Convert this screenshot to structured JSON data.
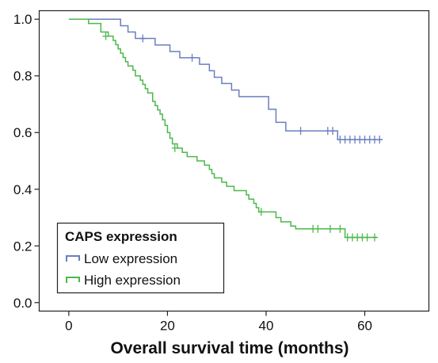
{
  "chart_data": {
    "type": "line",
    "subtype": "kaplan-meier",
    "xlabel": "Overall survival time (months)",
    "ylabel": "",
    "xlim": [
      -6,
      73
    ],
    "ylim": [
      -0.03,
      1.03
    ],
    "xticks": [
      0,
      20,
      40,
      60
    ],
    "yticks": [
      0.0,
      0.2,
      0.4,
      0.6,
      0.8,
      1.0
    ],
    "xtick_labels": [
      "0",
      "20",
      "40",
      "60"
    ],
    "ytick_labels": [
      "0.0",
      "0.2",
      "0.4",
      "0.6",
      "0.8",
      "1.0"
    ],
    "grid": false,
    "legend": {
      "title": "CAPS expression",
      "placement": "bottom-left"
    },
    "series": [
      {
        "name": "Low expression",
        "color": "#6a7fc0",
        "steps": [
          [
            0,
            1.0
          ],
          [
            10.5,
            0.977
          ],
          [
            12,
            0.955
          ],
          [
            13.5,
            0.932
          ],
          [
            17.5,
            0.909
          ],
          [
            20.5,
            0.886
          ],
          [
            22.5,
            0.864
          ],
          [
            26.5,
            0.841
          ],
          [
            28.5,
            0.818
          ],
          [
            29.5,
            0.795
          ],
          [
            31,
            0.773
          ],
          [
            33,
            0.75
          ],
          [
            34.5,
            0.727
          ],
          [
            40.5,
            0.682
          ],
          [
            42,
            0.636
          ],
          [
            44,
            0.606
          ],
          [
            54.5,
            0.575
          ]
        ],
        "end": 63.5,
        "censored": [
          [
            15,
            0.932
          ],
          [
            25,
            0.864
          ],
          [
            47,
            0.606
          ],
          [
            52.5,
            0.606
          ],
          [
            53.5,
            0.606
          ],
          [
            55,
            0.575
          ],
          [
            56,
            0.575
          ],
          [
            57,
            0.575
          ],
          [
            58,
            0.575
          ],
          [
            59,
            0.575
          ],
          [
            60,
            0.575
          ],
          [
            61,
            0.575
          ],
          [
            62,
            0.575
          ],
          [
            63,
            0.575
          ]
        ]
      },
      {
        "name": "High expression",
        "color": "#4cb84c",
        "steps": [
          [
            0,
            1.0
          ],
          [
            4,
            0.985
          ],
          [
            6.5,
            0.955
          ],
          [
            8,
            0.94
          ],
          [
            9,
            0.925
          ],
          [
            9.5,
            0.91
          ],
          [
            10,
            0.895
          ],
          [
            10.5,
            0.88
          ],
          [
            11,
            0.865
          ],
          [
            11.5,
            0.85
          ],
          [
            12,
            0.835
          ],
          [
            13,
            0.82
          ],
          [
            13.5,
            0.8
          ],
          [
            14.5,
            0.785
          ],
          [
            15,
            0.77
          ],
          [
            15.5,
            0.755
          ],
          [
            16,
            0.74
          ],
          [
            17,
            0.71
          ],
          [
            17.5,
            0.695
          ],
          [
            18,
            0.68
          ],
          [
            18.5,
            0.665
          ],
          [
            19,
            0.645
          ],
          [
            19.5,
            0.625
          ],
          [
            20,
            0.6
          ],
          [
            20.5,
            0.58
          ],
          [
            21,
            0.56
          ],
          [
            22,
            0.545
          ],
          [
            23,
            0.53
          ],
          [
            24,
            0.515
          ],
          [
            26,
            0.5
          ],
          [
            27.5,
            0.485
          ],
          [
            28.5,
            0.47
          ],
          [
            29,
            0.455
          ],
          [
            29.5,
            0.44
          ],
          [
            31,
            0.425
          ],
          [
            32,
            0.41
          ],
          [
            33.5,
            0.395
          ],
          [
            36,
            0.38
          ],
          [
            36.5,
            0.365
          ],
          [
            37.5,
            0.35
          ],
          [
            38,
            0.335
          ],
          [
            38.5,
            0.32
          ],
          [
            42,
            0.3
          ],
          [
            43,
            0.285
          ],
          [
            45,
            0.27
          ],
          [
            46,
            0.26
          ],
          [
            56,
            0.23
          ]
        ],
        "end": 62.5,
        "censored": [
          [
            7.5,
            0.94
          ],
          [
            21.5,
            0.545
          ],
          [
            39,
            0.32
          ],
          [
            49.5,
            0.26
          ],
          [
            50.5,
            0.26
          ],
          [
            53,
            0.26
          ],
          [
            55,
            0.26
          ],
          [
            56.5,
            0.23
          ],
          [
            57.5,
            0.23
          ],
          [
            58.5,
            0.23
          ],
          [
            59.5,
            0.23
          ],
          [
            60.5,
            0.23
          ],
          [
            62,
            0.23
          ]
        ]
      }
    ]
  }
}
